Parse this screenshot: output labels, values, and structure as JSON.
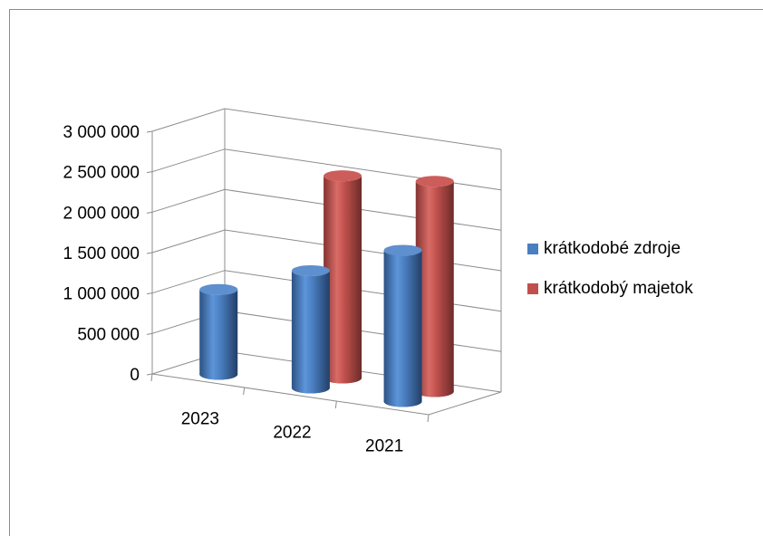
{
  "chart_data": {
    "type": "bar",
    "bar_shape": "cylinder-3d",
    "categories": [
      "2023",
      "2022",
      "2021"
    ],
    "series": [
      {
        "name": "krátkodobé zdroje",
        "color": "#4a7ec0",
        "values": [
          1050000,
          1450000,
          1870000
        ]
      },
      {
        "name": "krátkodobý majetok",
        "color": "#c0504d",
        "values": [
          null,
          2500000,
          2600000
        ]
      }
    ],
    "y_ticks": [
      "0",
      "500 000",
      "1 000 000",
      "1 500 000",
      "2 000 000",
      "2 500 000",
      "3 000 000"
    ],
    "ylim": [
      0,
      3000000
    ],
    "grid": true,
    "legend_position": "right"
  }
}
